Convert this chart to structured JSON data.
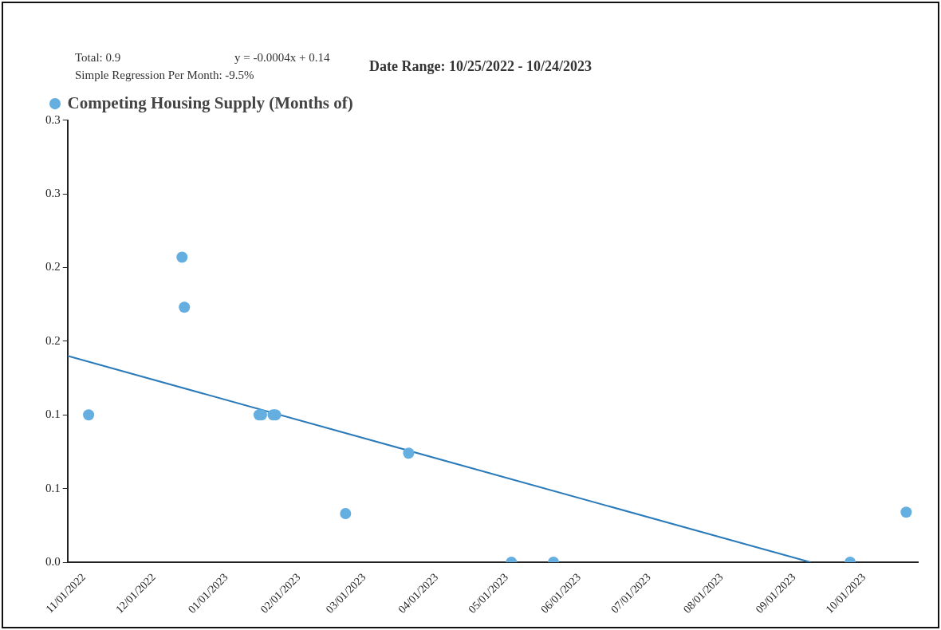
{
  "chart_data": {
    "type": "scatter",
    "title": "Date Range: 10/25/2022 - 10/24/2023",
    "annotations": [
      "Total: 0.9",
      "y = -0.0004x + 0.14",
      "Simple Regression Per Month: -9.5%"
    ],
    "xlim": [
      "2022-10-25",
      "2023-10-24"
    ],
    "xticks": [
      {
        "value": "2022-11-01",
        "label": "11/01/2022"
      },
      {
        "value": "2022-12-01",
        "label": "12/01/2022"
      },
      {
        "value": "2023-01-01",
        "label": "01/01/2023"
      },
      {
        "value": "2023-02-01",
        "label": "02/01/2023"
      },
      {
        "value": "2023-03-01",
        "label": "03/01/2023"
      },
      {
        "value": "2023-04-01",
        "label": "04/01/2023"
      },
      {
        "value": "2023-05-01",
        "label": "05/01/2023"
      },
      {
        "value": "2023-06-01",
        "label": "06/01/2023"
      },
      {
        "value": "2023-07-01",
        "label": "07/01/2023"
      },
      {
        "value": "2023-08-01",
        "label": "08/01/2023"
      },
      {
        "value": "2023-09-01",
        "label": "09/01/2023"
      },
      {
        "value": "2023-10-01",
        "label": "10/01/2023"
      }
    ],
    "ylim": [
      0,
      0.3
    ],
    "yticks": [
      {
        "value": 0,
        "label": "0.0"
      },
      {
        "value": 0.05,
        "label": "0.1"
      },
      {
        "value": 0.1,
        "label": "0.1"
      },
      {
        "value": 0.15,
        "label": "0.2"
      },
      {
        "value": 0.2,
        "label": "0.2"
      },
      {
        "value": 0.25,
        "label": "0.3"
      },
      {
        "value": 0.3,
        "label": "0.3"
      }
    ],
    "grid": false,
    "legend": "top left",
    "marker": "circle",
    "series": [
      {
        "name": "Competing Housing Supply (Months of)",
        "type": "scatter",
        "color": "#64aee0",
        "x": [
          "2022-11-03",
          "2022-12-13",
          "2022-12-14",
          "2023-01-15",
          "2023-01-16",
          "2023-01-21",
          "2023-01-22",
          "2023-02-21",
          "2023-03-20",
          "2023-05-03",
          "2023-05-21",
          "2023-09-25",
          "2023-10-19"
        ],
        "values": [
          0.1,
          0.207,
          0.173,
          0.1,
          0.1,
          0.1,
          0.1,
          0.033,
          0.074,
          0,
          0,
          0,
          0.034
        ]
      },
      {
        "type": "line",
        "color": "#2b7bba",
        "x": [
          "2022-10-25",
          "2023-09-08"
        ],
        "values": [
          0.14,
          0
        ],
        "marker": "none"
      }
    ]
  }
}
